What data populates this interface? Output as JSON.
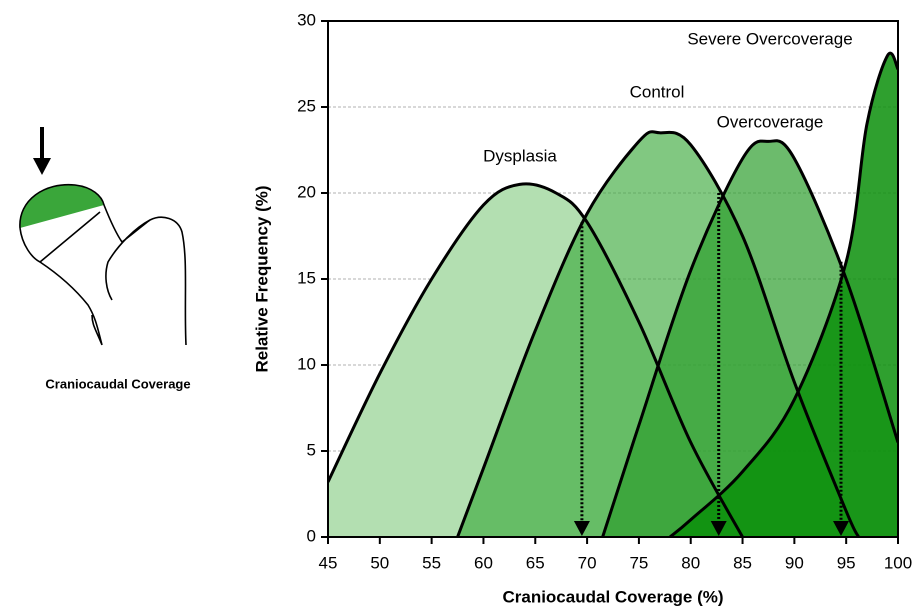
{
  "chart_data": {
    "type": "area",
    "xlabel": "Craniocaudal Coverage (%)",
    "ylabel": "Relative Frequency (%)",
    "xlim": [
      45,
      100
    ],
    "xticks": [
      45,
      50,
      55,
      60,
      65,
      70,
      75,
      80,
      85,
      90,
      95,
      100
    ],
    "ylim": [
      0,
      30
    ],
    "yticks": [
      0,
      5,
      10,
      15,
      20,
      25,
      30
    ],
    "grid": true,
    "series": [
      {
        "name": "Dysplasia",
        "color": "#b3dfb1",
        "x": [
          45,
          50,
          55,
          60,
          63.5,
          67,
          70,
          75,
          80,
          85
        ],
        "values": [
          3.2,
          9.5,
          15,
          19.3,
          20.5,
          20,
          18.3,
          12.5,
          5.5,
          0
        ]
      },
      {
        "name": "Control",
        "color": "#3daa3d",
        "x": [
          57.5,
          60,
          65,
          70,
          75,
          77,
          80,
          85,
          90,
          95,
          96.2
        ],
        "values": [
          0,
          4,
          12,
          18.8,
          23,
          23.5,
          22.8,
          17.5,
          9,
          1.5,
          0
        ]
      },
      {
        "name": "Overcoverage",
        "color": "#2e9e2e",
        "x": [
          71.5,
          75,
          80,
          85,
          87.5,
          90,
          95,
          100
        ],
        "values": [
          0,
          6.5,
          15.5,
          22,
          23,
          22,
          15,
          5.5
        ]
      },
      {
        "name": "Severe Overcoverage",
        "color": "#0a8f0a",
        "x": [
          78,
          80,
          85,
          90,
          95,
          97,
          99,
          100
        ],
        "values": [
          0,
          1,
          3.8,
          8,
          16,
          24,
          28,
          27.2
        ]
      }
    ],
    "thresholds": [
      {
        "x": 69.5,
        "y": 18.3
      },
      {
        "x": 82.7,
        "y": 20
      },
      {
        "x": 94.5,
        "y": 16
      }
    ]
  },
  "illustration": {
    "caption": "Craniocaudal Coverage"
  }
}
